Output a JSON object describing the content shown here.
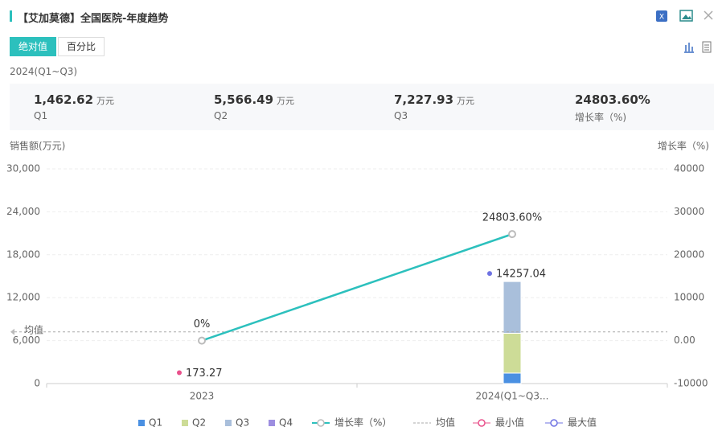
{
  "header": {
    "title": "【艾加莫德】全国医院-年度趋势"
  },
  "tabs": [
    "绝对值",
    "百分比"
  ],
  "period": "2024(Q1~Q3)",
  "summary": [
    {
      "value": "1,462.62",
      "unit": "万元",
      "label": "Q1"
    },
    {
      "value": "5,566.49",
      "unit": "万元",
      "label": "Q2"
    },
    {
      "value": "7,227.93",
      "unit": "万元",
      "label": "Q3"
    },
    {
      "value": "24803.60%",
      "label": "增长率（%)"
    }
  ],
  "chart_data": {
    "type": "bar",
    "stacked": true,
    "y_label": "销售额(万元)",
    "y2_label": "增长率（%)",
    "categories": [
      "2023",
      "2024(Q1~Q3..."
    ],
    "series": [
      {
        "name": "Q1",
        "color": "#4a90e2",
        "values": [
          null,
          1462.62
        ]
      },
      {
        "name": "Q2",
        "color": "#cddc97",
        "values": [
          null,
          5566.49
        ]
      },
      {
        "name": "Q3",
        "color": "#a9bfdb",
        "values": [
          null,
          7227.93
        ]
      },
      {
        "name": "Q4",
        "color": "#9d8ee0",
        "values": [
          null,
          null
        ]
      },
      {
        "name": "增长率（%）",
        "type": "line",
        "axis": "y2",
        "color": "#2cc0bd",
        "values": [
          0,
          24803.6
        ],
        "value_labels": [
          "0%",
          "24803.60%"
        ]
      }
    ],
    "average": {
      "name": "均值",
      "value": 7215.16,
      "color": "#aaaaaa"
    },
    "min": {
      "name": "最小值",
      "color": "#e9508b",
      "values": [
        173.27,
        null
      ]
    },
    "max": {
      "name": "最大值",
      "color": "#6e72e2",
      "values": [
        null,
        14257.04
      ]
    },
    "ylim": [
      0,
      30000
    ],
    "yticks": [
      0,
      {
        "value": 6000,
        "label": "6,000"
      },
      {
        "value": 12000,
        "label": "12,000"
      },
      {
        "value": 18000,
        "label": "18,000"
      },
      {
        "value": 24000,
        "label": "24,000"
      },
      {
        "value": 30000,
        "label": "30,000"
      }
    ],
    "y2lim": [
      -10000,
      40000
    ],
    "y2ticks": [
      -10000,
      {
        "value": 0,
        "label": "0.00"
      },
      10000,
      20000,
      30000,
      40000
    ],
    "grid": true
  }
}
